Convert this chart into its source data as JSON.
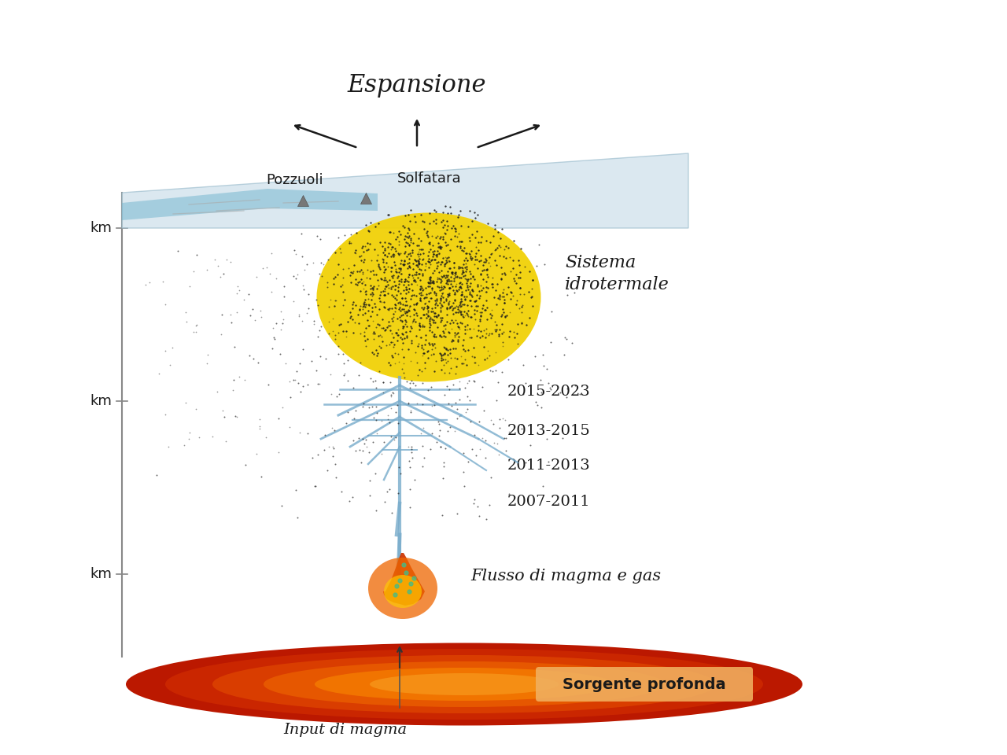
{
  "bg_color": "#ffffff",
  "labels": {
    "espansione": "Espansione",
    "pozzuoli": "Pozzuoli",
    "solfatara": "Solfatara",
    "sistema_idrotermale": "Sistema\nidrotermale",
    "periodo1": "2015-2023",
    "periodo2": "2013-2015",
    "periodo3": "2011-2013",
    "periodo4": "2007-2011",
    "flusso": "Flusso di magma e gas",
    "sorgente": "Sorgente profonda",
    "input": "Input di magma"
  },
  "colors": {
    "surface_plane": "#c8dde8",
    "water": "#78b8d0",
    "dots": "#1a1a1a",
    "yellow_blob": "#f0d000",
    "crack_lines": "#7aadcc",
    "magma_red": "#cc2200",
    "magma_orange": "#ee6600",
    "magma_yellow": "#ffcc00",
    "sorgente_bg": "#f0b060",
    "text_dark": "#1a1a1a",
    "axis_line": "#888888"
  }
}
